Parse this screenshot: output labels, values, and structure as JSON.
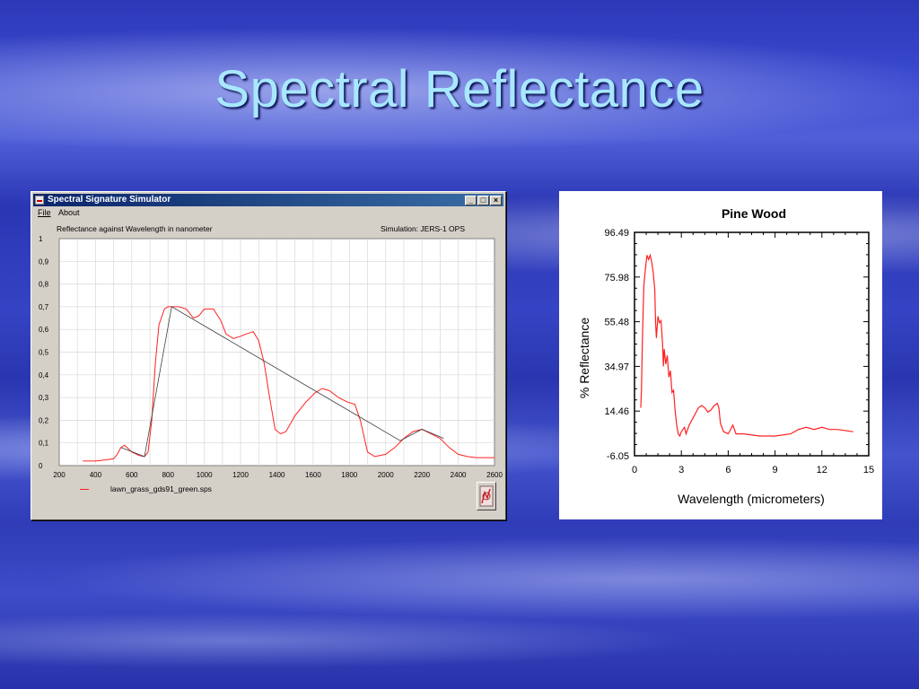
{
  "slide": {
    "title": "Spectral Reflectance"
  },
  "window": {
    "title": "Spectral Signature Simulator",
    "menu": {
      "file": "File",
      "about": "About"
    },
    "header_left": "Reflectance against Wavelength in nanometer",
    "header_right": "Simulation: JERS-1 OPS",
    "legend_label": "lawn_grass_gds91_green.sps",
    "icons": [
      "app-icon",
      "minimize-icon",
      "maximize-icon",
      "close-icon",
      "simulator-logo-icon"
    ],
    "colors": {
      "titlebar": "#0a246a",
      "series": "#ff2020",
      "band": "#404040"
    }
  },
  "chart_data": [
    {
      "type": "line",
      "title": "",
      "xlabel": "",
      "ylabel": "",
      "xlim": [
        200,
        2600
      ],
      "ylim": [
        0,
        1
      ],
      "grid": true,
      "x_ticks": [
        "200",
        "400",
        "600",
        "800",
        "1000",
        "1200",
        "1400",
        "1600",
        "1800",
        "2000",
        "2200",
        "2400",
        "2600"
      ],
      "y_ticks": [
        "0",
        "0,1",
        "0,2",
        "0,3",
        "0,4",
        "0,5",
        "0,6",
        "0,7",
        "0,8",
        "0,9",
        "1"
      ],
      "series": [
        {
          "name": "lawn_grass_gds91_green.sps",
          "color": "#ff2020",
          "points": [
            [
              330,
              0.02
            ],
            [
              400,
              0.02
            ],
            [
              450,
              0.025
            ],
            [
              500,
              0.03
            ],
            [
              520,
              0.05
            ],
            [
              540,
              0.08
            ],
            [
              560,
              0.09
            ],
            [
              580,
              0.075
            ],
            [
              600,
              0.06
            ],
            [
              640,
              0.045
            ],
            [
              670,
              0.04
            ],
            [
              690,
              0.06
            ],
            [
              710,
              0.2
            ],
            [
              730,
              0.45
            ],
            [
              750,
              0.62
            ],
            [
              780,
              0.69
            ],
            [
              800,
              0.7
            ],
            [
              860,
              0.7
            ],
            [
              900,
              0.69
            ],
            [
              940,
              0.65
            ],
            [
              970,
              0.66
            ],
            [
              1000,
              0.69
            ],
            [
              1050,
              0.69
            ],
            [
              1090,
              0.64
            ],
            [
              1120,
              0.58
            ],
            [
              1160,
              0.56
            ],
            [
              1200,
              0.57
            ],
            [
              1230,
              0.58
            ],
            [
              1270,
              0.59
            ],
            [
              1300,
              0.55
            ],
            [
              1330,
              0.45
            ],
            [
              1360,
              0.3
            ],
            [
              1390,
              0.16
            ],
            [
              1420,
              0.14
            ],
            [
              1450,
              0.15
            ],
            [
              1500,
              0.22
            ],
            [
              1560,
              0.28
            ],
            [
              1610,
              0.32
            ],
            [
              1650,
              0.34
            ],
            [
              1690,
              0.33
            ],
            [
              1740,
              0.3
            ],
            [
              1790,
              0.28
            ],
            [
              1830,
              0.27
            ],
            [
              1860,
              0.2
            ],
            [
              1900,
              0.06
            ],
            [
              1940,
              0.04
            ],
            [
              2000,
              0.05
            ],
            [
              2050,
              0.08
            ],
            [
              2100,
              0.12
            ],
            [
              2150,
              0.15
            ],
            [
              2200,
              0.16
            ],
            [
              2250,
              0.14
            ],
            [
              2300,
              0.12
            ],
            [
              2350,
              0.08
            ],
            [
              2400,
              0.05
            ],
            [
              2450,
              0.04
            ],
            [
              2500,
              0.035
            ],
            [
              2600,
              0.035
            ]
          ]
        },
        {
          "name": "",
          "color": "#404040",
          "points": [
            [
              540,
              0.08
            ],
            [
              670,
              0.04
            ],
            [
              820,
              0.7
            ],
            [
              2080,
              0.11
            ],
            [
              2200,
              0.16
            ],
            [
              2320,
              0.12
            ]
          ]
        }
      ]
    },
    {
      "type": "line",
      "title": "Pine Wood",
      "xlabel": "Wavelength (micrometers)",
      "ylabel": "% Reflectance",
      "xlim": [
        0,
        15
      ],
      "ylim": [
        -6.05,
        96.49
      ],
      "grid": false,
      "x_ticks": [
        "0",
        "3",
        "6",
        "9",
        "12",
        "15"
      ],
      "y_ticks": [
        "-6.05",
        "14.46",
        "34.97",
        "55.48",
        "75.98",
        "96.49"
      ],
      "series": [
        {
          "name": "",
          "color": "#ff2020",
          "points": [
            [
              0.4,
              16
            ],
            [
              0.45,
              25
            ],
            [
              0.5,
              45
            ],
            [
              0.55,
              60
            ],
            [
              0.6,
              72
            ],
            [
              0.7,
              80
            ],
            [
              0.8,
              86
            ],
            [
              0.9,
              84
            ],
            [
              1.0,
              86
            ],
            [
              1.1,
              83
            ],
            [
              1.2,
              78
            ],
            [
              1.3,
              70
            ],
            [
              1.35,
              55
            ],
            [
              1.4,
              48
            ],
            [
              1.5,
              58
            ],
            [
              1.6,
              55
            ],
            [
              1.7,
              56
            ],
            [
              1.8,
              45
            ],
            [
              1.85,
              35
            ],
            [
              1.9,
              43
            ],
            [
              2.0,
              36
            ],
            [
              2.1,
              40
            ],
            [
              2.2,
              30
            ],
            [
              2.3,
              33
            ],
            [
              2.4,
              23
            ],
            [
              2.5,
              24
            ],
            [
              2.6,
              15
            ],
            [
              2.7,
              8
            ],
            [
              2.8,
              4
            ],
            [
              2.9,
              3
            ],
            [
              3.0,
              5
            ],
            [
              3.2,
              7
            ],
            [
              3.3,
              4
            ],
            [
              3.5,
              8
            ],
            [
              3.8,
              12
            ],
            [
              4.1,
              16
            ],
            [
              4.3,
              17
            ],
            [
              4.5,
              16
            ],
            [
              4.7,
              14
            ],
            [
              4.9,
              15
            ],
            [
              5.1,
              17
            ],
            [
              5.3,
              18
            ],
            [
              5.4,
              16
            ],
            [
              5.5,
              9
            ],
            [
              5.7,
              5
            ],
            [
              6.0,
              4
            ],
            [
              6.3,
              8
            ],
            [
              6.5,
              4
            ],
            [
              7.0,
              4
            ],
            [
              8.0,
              3
            ],
            [
              9.0,
              3
            ],
            [
              10.0,
              4
            ],
            [
              10.5,
              6
            ],
            [
              11.0,
              7
            ],
            [
              11.5,
              6
            ],
            [
              12.0,
              7
            ],
            [
              12.5,
              6
            ],
            [
              13.0,
              6
            ],
            [
              14.0,
              5
            ]
          ]
        }
      ]
    }
  ]
}
